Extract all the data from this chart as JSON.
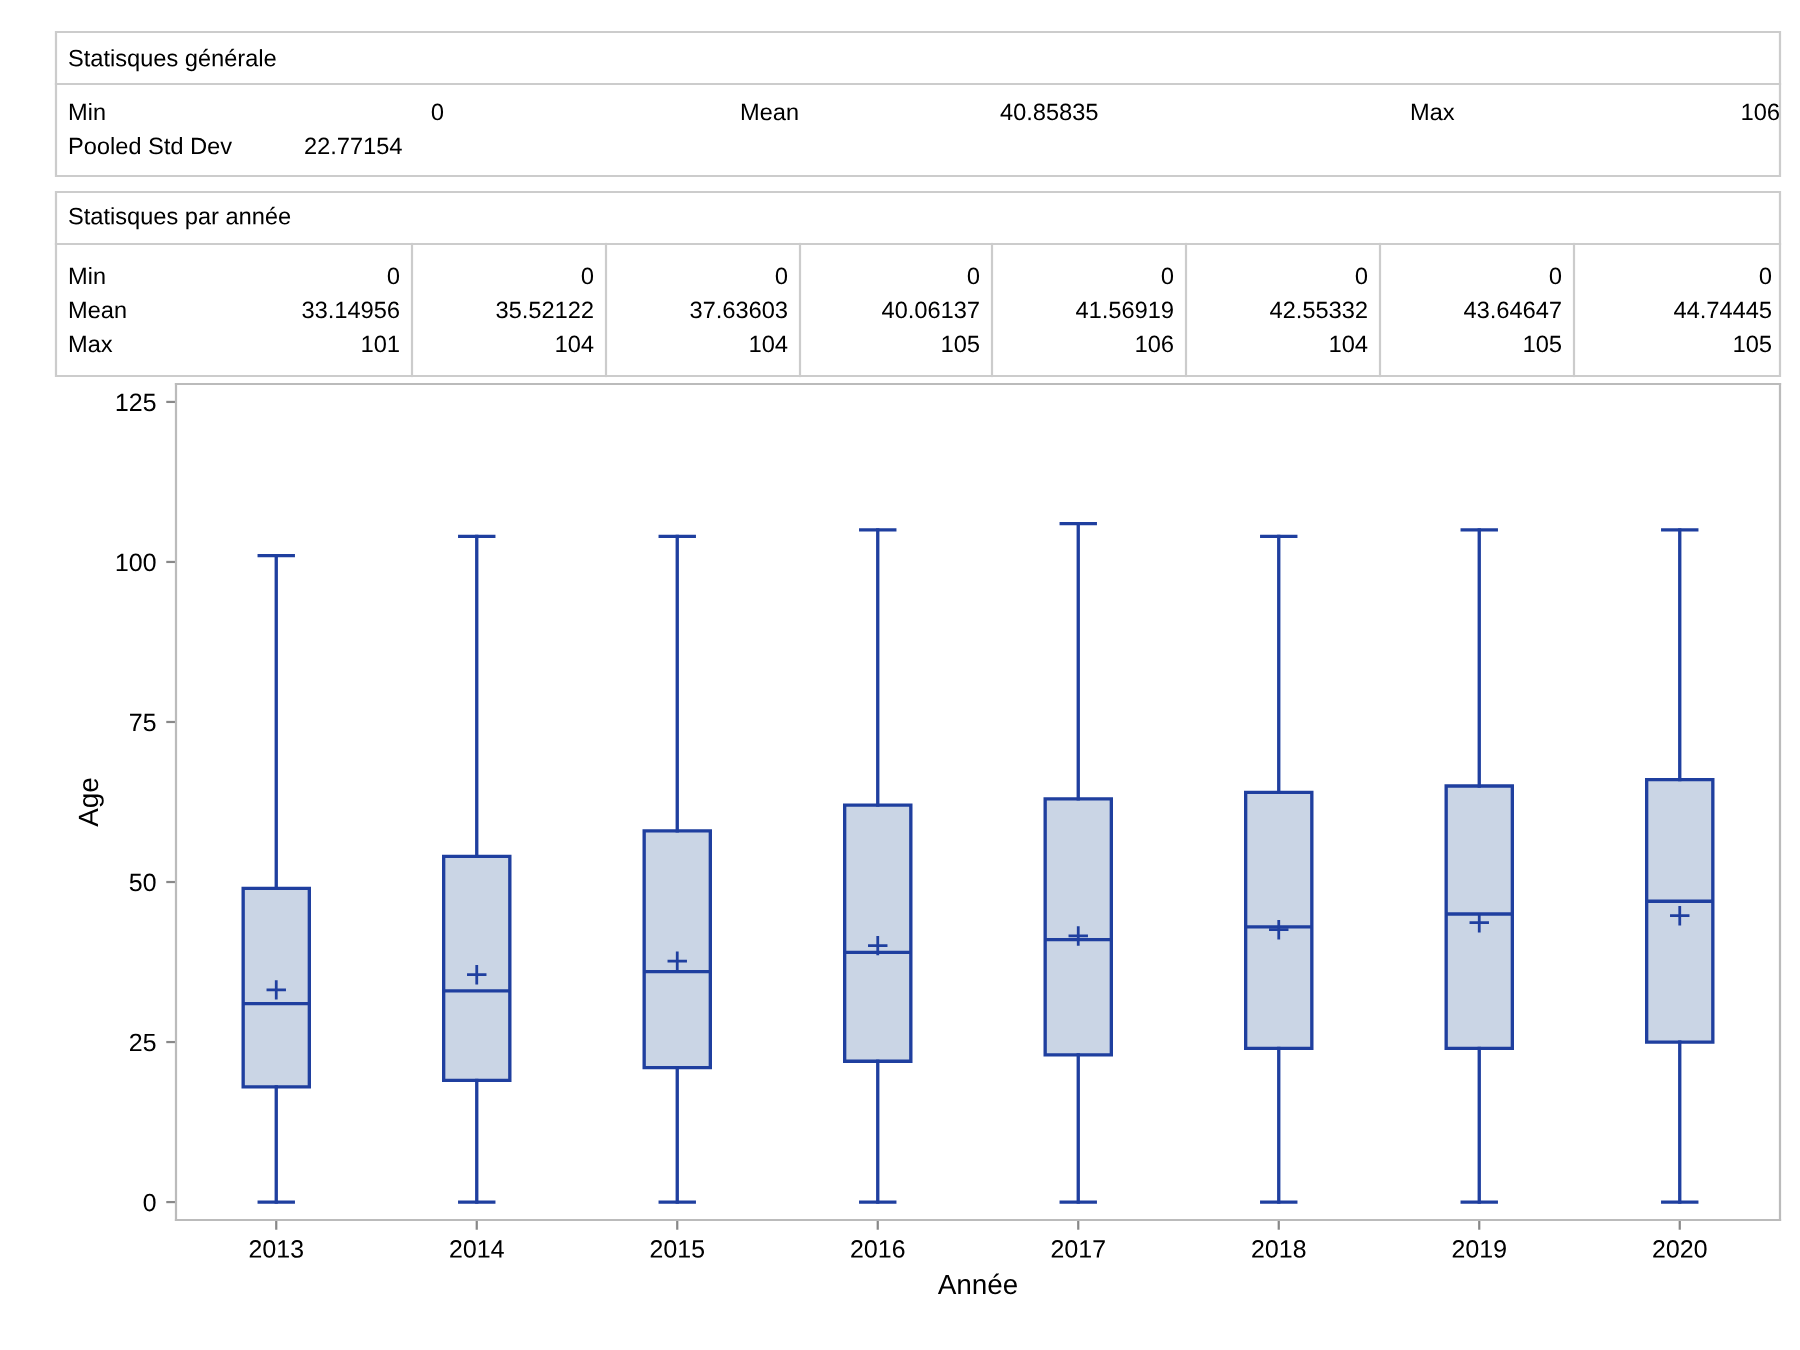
{
  "chart_data": {
    "type": "box",
    "xlabel": "Année",
    "ylabel": "Age",
    "categories": [
      "2013",
      "2014",
      "2015",
      "2016",
      "2017",
      "2018",
      "2019",
      "2020"
    ],
    "boxes": [
      {
        "low": 0,
        "q1": 18,
        "median": 31,
        "q3": 49,
        "high": 101,
        "mean": 33.14956
      },
      {
        "low": 0,
        "q1": 19,
        "median": 33,
        "q3": 54,
        "high": 104,
        "mean": 35.52122
      },
      {
        "low": 0,
        "q1": 21,
        "median": 36,
        "q3": 58,
        "high": 104,
        "mean": 37.63603
      },
      {
        "low": 0,
        "q1": 22,
        "median": 39,
        "q3": 62,
        "high": 105,
        "mean": 40.06137
      },
      {
        "low": 0,
        "q1": 23,
        "median": 41,
        "q3": 63,
        "high": 106,
        "mean": 41.56919
      },
      {
        "low": 0,
        "q1": 24,
        "median": 43,
        "q3": 64,
        "high": 104,
        "mean": 42.55332
      },
      {
        "low": 0,
        "q1": 24,
        "median": 45,
        "q3": 65,
        "high": 105,
        "mean": 43.64647
      },
      {
        "low": 0,
        "q1": 25,
        "median": 47,
        "q3": 66,
        "high": 105,
        "mean": 44.74445
      }
    ],
    "color": "#1f3f9f",
    "ylim": [
      -2.8,
      127.8
    ],
    "yticks": [
      0,
      25,
      50,
      75,
      100,
      125
    ],
    "grid": false,
    "annotations": [
      "Statisques générale",
      "Min",
      "0",
      "Mean",
      "40.85835",
      "Max",
      "106",
      "Pooled Std Dev",
      "22.77154",
      "Statisques par année",
      "Min",
      "Mean",
      "Max",
      "0",
      "0",
      "0",
      "0",
      "0",
      "0",
      "0",
      "0",
      "33.14956",
      "35.52122",
      "37.63603",
      "40.06137",
      "41.56919",
      "42.55332",
      "43.64647",
      "44.74445",
      "101",
      "104",
      "104",
      "105",
      "106",
      "104",
      "105",
      "105"
    ]
  }
}
